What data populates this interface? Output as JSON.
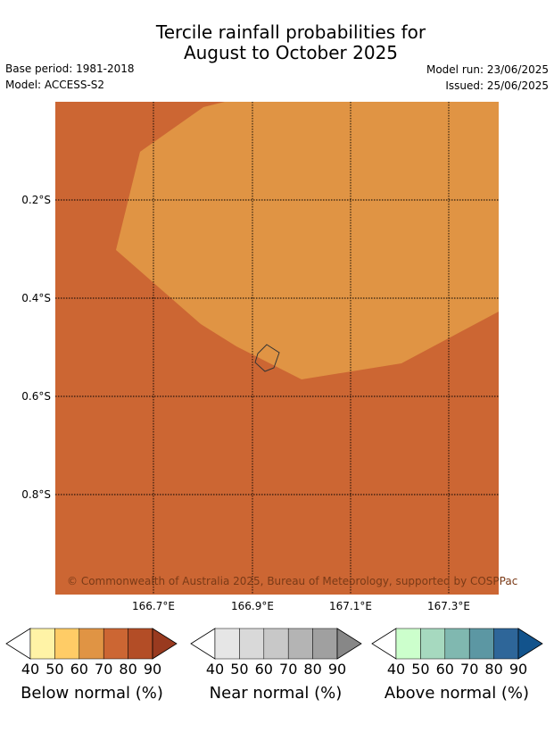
{
  "title": {
    "line1": "Tercile rainfall probabilities for",
    "line2": "August to October 2025"
  },
  "meta": {
    "base_period": "Base period: 1981-2018",
    "model": "Model: ACCESS-S2",
    "model_run": "Model run: 23/06/2025",
    "issued": "Issued: 25/06/2025"
  },
  "map": {
    "lat_labels": [
      "0.2°S",
      "0.4°S",
      "0.6°S",
      "0.8°S"
    ],
    "lon_labels": [
      "166.7°E",
      "166.9°E",
      "167.1°E",
      "167.3°E"
    ],
    "copyright": "© Commonwealth of Australia 2025, Bureau of Meteorology, supported by COSPPac",
    "fill_colors": {
      "below_70_80": "#cc6633",
      "below_60_70": "#e09444"
    }
  },
  "legends": [
    {
      "title": "Below normal (%)",
      "ticks": [
        "40",
        "50",
        "60",
        "70",
        "80",
        "90"
      ],
      "colors": [
        "#ffffff",
        "#fff3a6",
        "#ffcc66",
        "#e09444",
        "#cc6633",
        "#b34d26",
        "#993a1f"
      ]
    },
    {
      "title": "Near normal (%)",
      "ticks": [
        "40",
        "50",
        "60",
        "70",
        "80",
        "90"
      ],
      "colors": [
        "#ffffff",
        "#e6e6e6",
        "#d9d9d9",
        "#c8c8c8",
        "#b4b4b4",
        "#a0a0a0",
        "#878787"
      ]
    },
    {
      "title": "Above normal (%)",
      "ticks": [
        "40",
        "50",
        "60",
        "70",
        "80",
        "90"
      ],
      "colors": [
        "#ffffff",
        "#ccffcc",
        "#a6d9bf",
        "#80b8b0",
        "#5c97a3",
        "#2e6699",
        "#12538c"
      ]
    }
  ]
}
